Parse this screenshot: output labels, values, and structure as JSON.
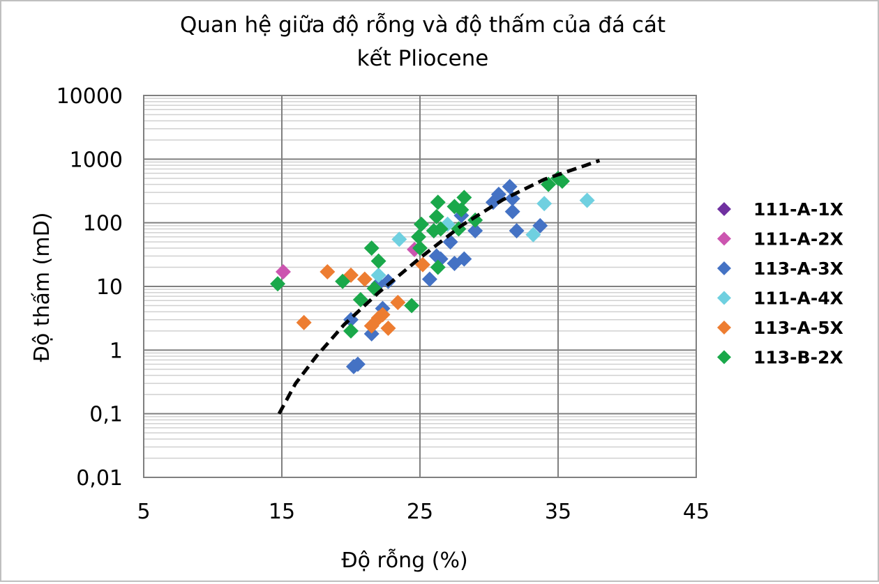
{
  "chart_data": {
    "type": "scatter",
    "title_lines": [
      "Quan hệ giữa độ rỗng và độ thấm của đá cát",
      "kết Pliocene"
    ],
    "xlabel": "Độ rỗng (%)",
    "ylabel": "Độ thấm (mD)",
    "xlim": [
      5,
      45
    ],
    "ylim": [
      0.01,
      10000
    ],
    "yscale": "log",
    "x_ticks": [
      "5",
      "15",
      "25",
      "35",
      "45"
    ],
    "y_ticks": [
      "0,01",
      "0,1",
      "1",
      "10",
      "100",
      "1000",
      "10000"
    ],
    "grid": true,
    "legend_position": "right",
    "trendline": {
      "style": "dashed",
      "color": "#000000",
      "points": [
        [
          14.8,
          0.1
        ],
        [
          16,
          0.3
        ],
        [
          17.5,
          0.8
        ],
        [
          19.5,
          2.5
        ],
        [
          22,
          8
        ],
        [
          25,
          28
        ],
        [
          28,
          90
        ],
        [
          31,
          230
        ],
        [
          34,
          480
        ],
        [
          37,
          800
        ],
        [
          38,
          950
        ]
      ]
    },
    "series": [
      {
        "name": "111-A-1X",
        "color": "#7030a0",
        "points": []
      },
      {
        "name": "111-A-2X",
        "color": "#cc55b0",
        "points": [
          [
            15.1,
            17
          ],
          [
            24.6,
            38
          ]
        ]
      },
      {
        "name": "113-A-3X",
        "color": "#4472c4",
        "points": [
          [
            20,
            3
          ],
          [
            20.2,
            0.55
          ],
          [
            20.5,
            0.6
          ],
          [
            21.5,
            1.8
          ],
          [
            22,
            11
          ],
          [
            22.3,
            4.5
          ],
          [
            22.7,
            12
          ],
          [
            25.7,
            13
          ],
          [
            26.2,
            30
          ],
          [
            26.5,
            27
          ],
          [
            26,
            75
          ],
          [
            27.2,
            50
          ],
          [
            27.5,
            23
          ],
          [
            28.2,
            27
          ],
          [
            28,
            130
          ],
          [
            29,
            75
          ],
          [
            30.3,
            210
          ],
          [
            30.7,
            280
          ],
          [
            31.5,
            370
          ],
          [
            31.7,
            240
          ],
          [
            31.7,
            150
          ],
          [
            32,
            75
          ],
          [
            33.7,
            90
          ]
        ]
      },
      {
        "name": "111-A-4X",
        "color": "#6fd0e0",
        "points": [
          [
            22,
            15
          ],
          [
            23.5,
            55
          ],
          [
            27,
            95
          ],
          [
            33.2,
            65
          ],
          [
            34,
            200
          ],
          [
            37.1,
            225
          ]
        ]
      },
      {
        "name": "113-A-5X",
        "color": "#ed7d31",
        "points": [
          [
            16.6,
            2.7
          ],
          [
            18.3,
            17
          ],
          [
            20,
            15
          ],
          [
            21,
            13
          ],
          [
            21.5,
            2.4
          ],
          [
            22,
            3.2
          ],
          [
            22.3,
            3.6
          ],
          [
            22.7,
            2.2
          ],
          [
            23.4,
            5.6
          ],
          [
            25.2,
            22
          ]
        ]
      },
      {
        "name": "113-B-2X",
        "color": "#1aa84a",
        "points": [
          [
            14.7,
            11
          ],
          [
            19.4,
            12
          ],
          [
            20,
            2
          ],
          [
            20.7,
            6.2
          ],
          [
            21.5,
            40
          ],
          [
            21.7,
            9.3
          ],
          [
            22,
            25
          ],
          [
            24.4,
            5
          ],
          [
            24.9,
            60
          ],
          [
            25,
            40
          ],
          [
            25.1,
            95
          ],
          [
            26,
            75
          ],
          [
            26.2,
            125
          ],
          [
            26.3,
            210
          ],
          [
            26.3,
            20
          ],
          [
            26.5,
            80
          ],
          [
            27.5,
            180
          ],
          [
            27.8,
            80
          ],
          [
            28.2,
            250
          ],
          [
            28,
            160
          ],
          [
            29,
            110
          ],
          [
            34.3,
            400
          ],
          [
            35,
            500
          ],
          [
            35.3,
            450
          ]
        ]
      }
    ]
  }
}
